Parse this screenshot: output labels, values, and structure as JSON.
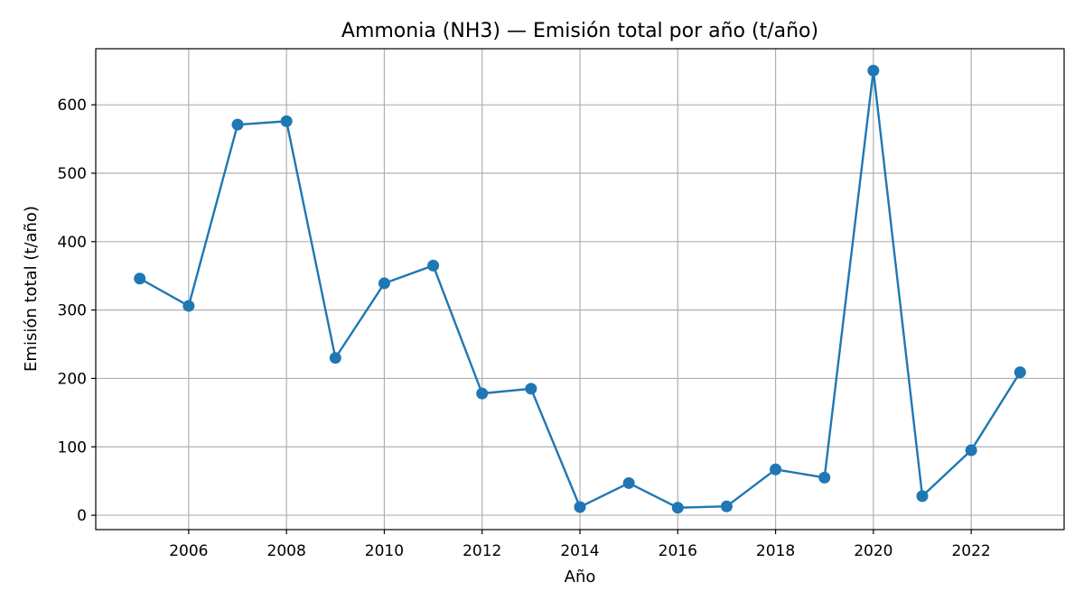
{
  "chart_data": {
    "type": "line",
    "title": "Ammonia (NH3) — Emisión total por año (t/año)",
    "xlabel": "Año",
    "ylabel": "Emisión total (t/año)",
    "x": [
      2005,
      2006,
      2007,
      2008,
      2009,
      2010,
      2011,
      2012,
      2013,
      2014,
      2015,
      2016,
      2017,
      2018,
      2019,
      2020,
      2021,
      2022,
      2023
    ],
    "series": [
      {
        "values": [
          346,
          306,
          571,
          576,
          230,
          339,
          365,
          178,
          185,
          12,
          47,
          11,
          13,
          67,
          55,
          650,
          28,
          95,
          209
        ],
        "color": "#1f77b4"
      }
    ],
    "xticks": [
      "2006",
      "2008",
      "2010",
      "2012",
      "2014",
      "2016",
      "2018",
      "2020",
      "2022"
    ],
    "yticks": [
      "0",
      "100",
      "200",
      "300",
      "400",
      "500",
      "600"
    ],
    "xlim": [
      2004.1,
      2023.9
    ],
    "ylim": [
      -21,
      682
    ],
    "grid": true,
    "marker": "circle"
  }
}
